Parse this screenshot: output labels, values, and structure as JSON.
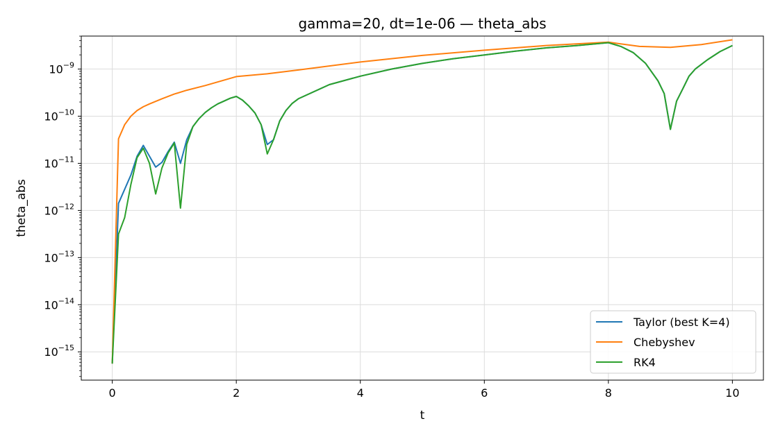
{
  "chart_data": {
    "type": "line",
    "title": "gamma=20, dt=1e-06 — theta_abs",
    "xlabel": "t",
    "ylabel": "theta_abs",
    "xlim": [
      -0.5,
      10.5
    ],
    "ylim_log10": [
      -15.6,
      -8.3
    ],
    "y_scale": "log",
    "grid": true,
    "legend_position": "lower-right",
    "x_ticks": [
      0,
      2,
      4,
      6,
      8,
      10
    ],
    "y_tick_exponents": [
      -15,
      -14,
      -13,
      -12,
      -11,
      -10,
      -9
    ],
    "series": [
      {
        "name": "Taylor (best K=4)",
        "color": "#1f77b4",
        "x": [
          0,
          0.1,
          0.2,
          0.3,
          0.4,
          0.5,
          0.6,
          0.7,
          0.8,
          0.9,
          1.0,
          1.1,
          1.2,
          1.3,
          1.4,
          1.5,
          1.6,
          1.7,
          1.8,
          1.9,
          2.0,
          2.1,
          2.2,
          2.3,
          2.4,
          2.5,
          2.6,
          2.7,
          2.8,
          2.9,
          3.0,
          3.5,
          4.0,
          4.5,
          5.0,
          5.5,
          6.0,
          6.5,
          7.0,
          7.5,
          8.0,
          8.2,
          8.4,
          8.6,
          8.8,
          8.9,
          9.0,
          9.1,
          9.2,
          9.3,
          9.4,
          9.6,
          9.8,
          10.0
        ],
        "log10_y": [
          -15.25,
          -11.85,
          -11.55,
          -11.25,
          -10.85,
          -10.62,
          -10.85,
          -11.08,
          -10.98,
          -10.75,
          -10.55,
          -11.0,
          -10.5,
          -10.22,
          -10.05,
          -9.92,
          -9.82,
          -9.74,
          -9.68,
          -9.62,
          -9.58,
          -9.66,
          -9.78,
          -9.93,
          -10.18,
          -10.6,
          -10.5,
          -10.1,
          -9.88,
          -9.73,
          -9.63,
          -9.33,
          -9.15,
          -9.0,
          -8.88,
          -8.78,
          -8.7,
          -8.62,
          -8.55,
          -8.5,
          -8.44,
          -8.52,
          -8.65,
          -8.88,
          -9.25,
          -9.52,
          -10.28,
          -9.68,
          -9.42,
          -9.15,
          -9.0,
          -8.8,
          -8.63,
          -8.5
        ]
      },
      {
        "name": "Chebyshev",
        "color": "#ff7f0e",
        "x": [
          0,
          0.1,
          0.2,
          0.3,
          0.4,
          0.5,
          0.6,
          0.8,
          1.0,
          1.2,
          1.5,
          2.0,
          2.5,
          3.0,
          4.0,
          5.0,
          6.0,
          7.0,
          8.0,
          8.5,
          9.0,
          9.5,
          10.0
        ],
        "log10_y": [
          -15.25,
          -10.48,
          -10.18,
          -10.0,
          -9.88,
          -9.8,
          -9.74,
          -9.63,
          -9.53,
          -9.45,
          -9.35,
          -9.16,
          -9.1,
          -9.02,
          -8.85,
          -8.71,
          -8.6,
          -8.5,
          -8.43,
          -8.52,
          -8.54,
          -8.48,
          -8.38
        ]
      },
      {
        "name": "RK4",
        "color": "#2ca02c",
        "x": [
          0,
          0.1,
          0.2,
          0.3,
          0.4,
          0.5,
          0.6,
          0.7,
          0.8,
          0.9,
          1.0,
          1.1,
          1.2,
          1.3,
          1.4,
          1.5,
          1.6,
          1.7,
          1.8,
          1.9,
          2.0,
          2.1,
          2.2,
          2.3,
          2.4,
          2.5,
          2.6,
          2.7,
          2.8,
          2.9,
          3.0,
          3.5,
          4.0,
          4.5,
          5.0,
          5.5,
          6.0,
          6.5,
          7.0,
          7.5,
          8.0,
          8.2,
          8.4,
          8.6,
          8.8,
          8.9,
          9.0,
          9.1,
          9.2,
          9.3,
          9.4,
          9.6,
          9.8,
          10.0
        ],
        "log10_y": [
          -15.25,
          -12.5,
          -12.15,
          -11.45,
          -10.88,
          -10.68,
          -11.0,
          -11.65,
          -11.1,
          -10.78,
          -10.57,
          -11.95,
          -10.6,
          -10.22,
          -10.05,
          -9.92,
          -9.82,
          -9.74,
          -9.68,
          -9.62,
          -9.58,
          -9.66,
          -9.78,
          -9.93,
          -10.18,
          -10.8,
          -10.5,
          -10.1,
          -9.88,
          -9.73,
          -9.63,
          -9.33,
          -9.15,
          -9.0,
          -8.88,
          -8.78,
          -8.7,
          -8.62,
          -8.55,
          -8.5,
          -8.44,
          -8.52,
          -8.65,
          -8.88,
          -9.25,
          -9.52,
          -10.28,
          -9.68,
          -9.42,
          -9.15,
          -9.0,
          -8.8,
          -8.63,
          -8.5
        ]
      }
    ]
  }
}
